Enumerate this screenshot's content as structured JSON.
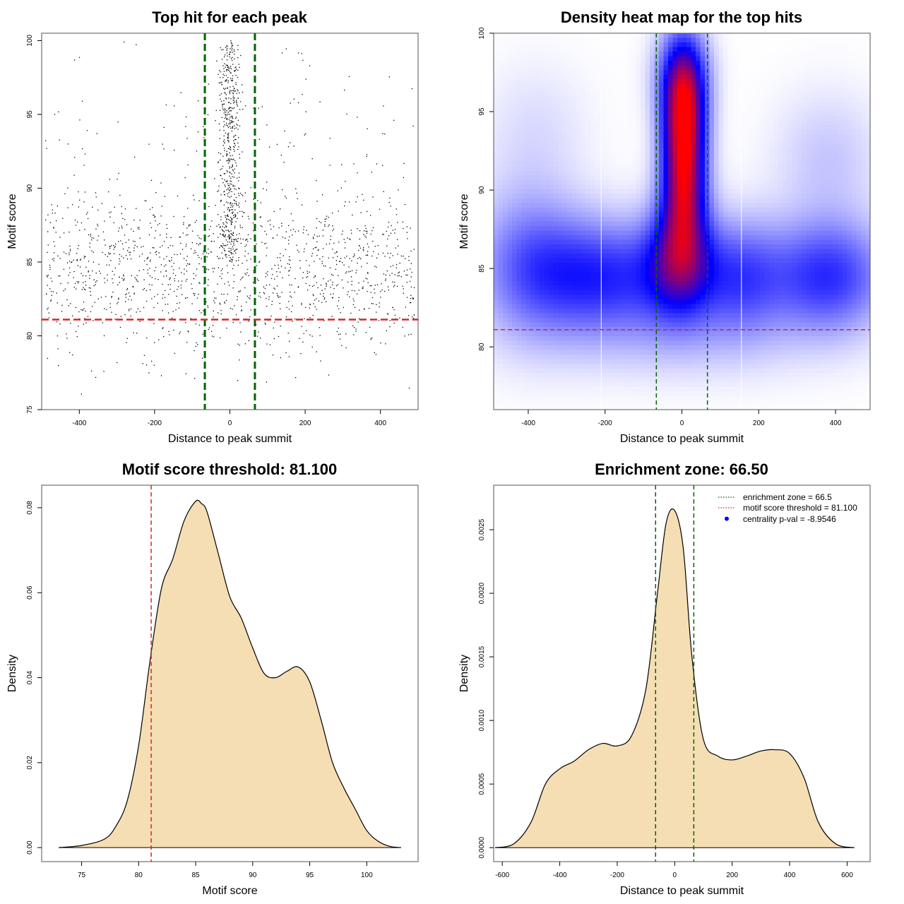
{
  "colors": {
    "scatter_point": "#000000",
    "threshold_line": "#d62728",
    "zone_line": "#006400",
    "density_fill": "#f5deb3",
    "heat_low": "#ffffff",
    "heat_mid": "#0000ff",
    "heat_high": "#ff0000",
    "legend_point": "#0000ff"
  },
  "chart_data": [
    {
      "type": "scatter",
      "title": "Top hit for each peak",
      "xlabel": "Distance to peak summit",
      "ylabel": "Motif score",
      "xlim": [
        -500,
        500
      ],
      "ylim": [
        75,
        100.5
      ],
      "xticks": [
        -400,
        -200,
        0,
        200,
        400
      ],
      "xtick_labels": [
        "-400",
        "-200",
        "0",
        "200",
        "400"
      ],
      "yticks": [
        75,
        80,
        85,
        90,
        95,
        100
      ],
      "ytick_labels": [
        "75",
        "80",
        "85",
        "90",
        "95",
        "100"
      ],
      "hlines": [
        81.1
      ],
      "vlines": [
        -66.5,
        66.5
      ],
      "points_summary": "approx. 2000 top-hit points: uniform background over x in [-500,500] and motif score 76-100, with a dense central cluster within about ±30 bp spanning scores 85-100",
      "grid": false
    },
    {
      "type": "heatmap",
      "title": "Density heat map for the top hits",
      "xlabel": "Distance to peak summit",
      "ylabel": "Motif score",
      "xlim": [
        -490,
        490
      ],
      "ylim": [
        76,
        100
      ],
      "xticks": [
        -400,
        -200,
        0,
        200,
        400
      ],
      "xtick_labels": [
        "-400",
        "-200",
        "0",
        "200",
        "400"
      ],
      "yticks": [
        80,
        85,
        90,
        95,
        100
      ],
      "ytick_labels": [
        "80",
        "85",
        "90",
        "95",
        "100"
      ],
      "hlines": [
        81.1
      ],
      "vlines": [
        -66.5,
        66.5
      ],
      "white_vlines": [
        -210,
        155
      ],
      "density_components": [
        {
          "x": 5,
          "y": 94.5,
          "sx": 40,
          "sy": 3.2,
          "w": 1.0
        },
        {
          "x": 5,
          "y": 89.5,
          "sx": 40,
          "sy": 2.5,
          "w": 0.55
        },
        {
          "x": -5,
          "y": 85.5,
          "sx": 60,
          "sy": 2.5,
          "w": 0.55
        },
        {
          "x": 0,
          "y": 97.5,
          "sx": 50,
          "sy": 2.0,
          "w": 0.25
        },
        {
          "x": -200,
          "y": 84.5,
          "sx": 150,
          "sy": 2.5,
          "w": 0.45
        },
        {
          "x": 150,
          "y": 84.5,
          "sx": 80,
          "sy": 2.5,
          "w": 0.35
        },
        {
          "x": 380,
          "y": 84.5,
          "sx": 110,
          "sy": 2.5,
          "w": 0.45
        },
        {
          "x": -400,
          "y": 85.5,
          "sx": 100,
          "sy": 3.5,
          "w": 0.25
        },
        {
          "x": 380,
          "y": 92.0,
          "sx": 100,
          "sy": 3.0,
          "w": 0.12
        },
        {
          "x": -380,
          "y": 94.0,
          "sx": 100,
          "sy": 3.0,
          "w": 0.07
        },
        {
          "x": 0,
          "y": 80.5,
          "sx": 250,
          "sy": 2.0,
          "w": 0.1
        }
      ],
      "color_scale": [
        "white",
        "blue",
        "red"
      ]
    },
    {
      "type": "area",
      "title": "Motif score threshold: 81.100",
      "xlabel": "Motif score",
      "ylabel": "Density",
      "xlim": [
        71.5,
        104.5
      ],
      "ylim": [
        -0.0033,
        0.0853
      ],
      "xticks": [
        75,
        80,
        85,
        90,
        95,
        100
      ],
      "xtick_labels": [
        "75",
        "80",
        "85",
        "90",
        "95",
        "100"
      ],
      "yticks": [
        0,
        0.02,
        0.04,
        0.06,
        0.08
      ],
      "ytick_labels": [
        "0.00",
        "0.02",
        "0.04",
        "0.06",
        "0.08"
      ],
      "vlines": [
        81.1
      ],
      "x": [
        73,
        75,
        77,
        78,
        79,
        80,
        81,
        82,
        83,
        84,
        85,
        85.5,
        86,
        87,
        88,
        89,
        90,
        91,
        92,
        93,
        94,
        95,
        96,
        97,
        98,
        99,
        100,
        101,
        102,
        103
      ],
      "y": [
        0,
        0.0005,
        0.002,
        0.005,
        0.011,
        0.024,
        0.044,
        0.061,
        0.068,
        0.077,
        0.0815,
        0.081,
        0.079,
        0.069,
        0.059,
        0.054,
        0.047,
        0.041,
        0.04,
        0.0415,
        0.0425,
        0.039,
        0.03,
        0.02,
        0.014,
        0.009,
        0.004,
        0.0015,
        0.0003,
        0
      ]
    },
    {
      "type": "area",
      "title": "Enrichment zone: 66.50",
      "xlabel": "Distance to peak summit",
      "ylabel": "Density",
      "xlim": [
        -630,
        680
      ],
      "ylim": [
        -0.00011,
        0.00285
      ],
      "xticks": [
        -600,
        -400,
        -200,
        0,
        200,
        400,
        600
      ],
      "xtick_labels": [
        "-600",
        "-400",
        "-200",
        "0",
        "200",
        "400",
        "600"
      ],
      "yticks": [
        0,
        0.0005,
        0.001,
        0.0015,
        0.002,
        0.0025
      ],
      "ytick_labels": [
        "0.0000",
        "0.0005",
        "0.0010",
        "0.0015",
        "0.0020",
        "0.0025"
      ],
      "vlines": [
        -66.5,
        66.5
      ],
      "x": [
        -625,
        -560,
        -500,
        -450,
        -400,
        -350,
        -300,
        -250,
        -200,
        -150,
        -100,
        -60,
        -30,
        0,
        30,
        60,
        100,
        150,
        200,
        250,
        300,
        350,
        400,
        450,
        500,
        560,
        625
      ],
      "y": [
        0,
        3e-05,
        0.0002,
        0.0005,
        0.00062,
        0.00068,
        0.00077,
        0.00082,
        0.0008,
        0.00088,
        0.00125,
        0.002,
        0.00255,
        0.00265,
        0.00235,
        0.0015,
        0.00085,
        0.00072,
        0.00069,
        0.00072,
        0.00076,
        0.00077,
        0.00074,
        0.00055,
        0.0002,
        3e-05,
        0
      ],
      "legend": {
        "position": "top-right",
        "entries": [
          {
            "label": "enrichment zone = 66.5",
            "style": "dotted",
            "color": "#006400"
          },
          {
            "label": "motif score threshold = 81.100",
            "style": "dotted",
            "color": "#d62728"
          },
          {
            "label": "centrality p-val = -8.9546",
            "style": "point",
            "color": "#0000ff"
          }
        ]
      }
    }
  ]
}
